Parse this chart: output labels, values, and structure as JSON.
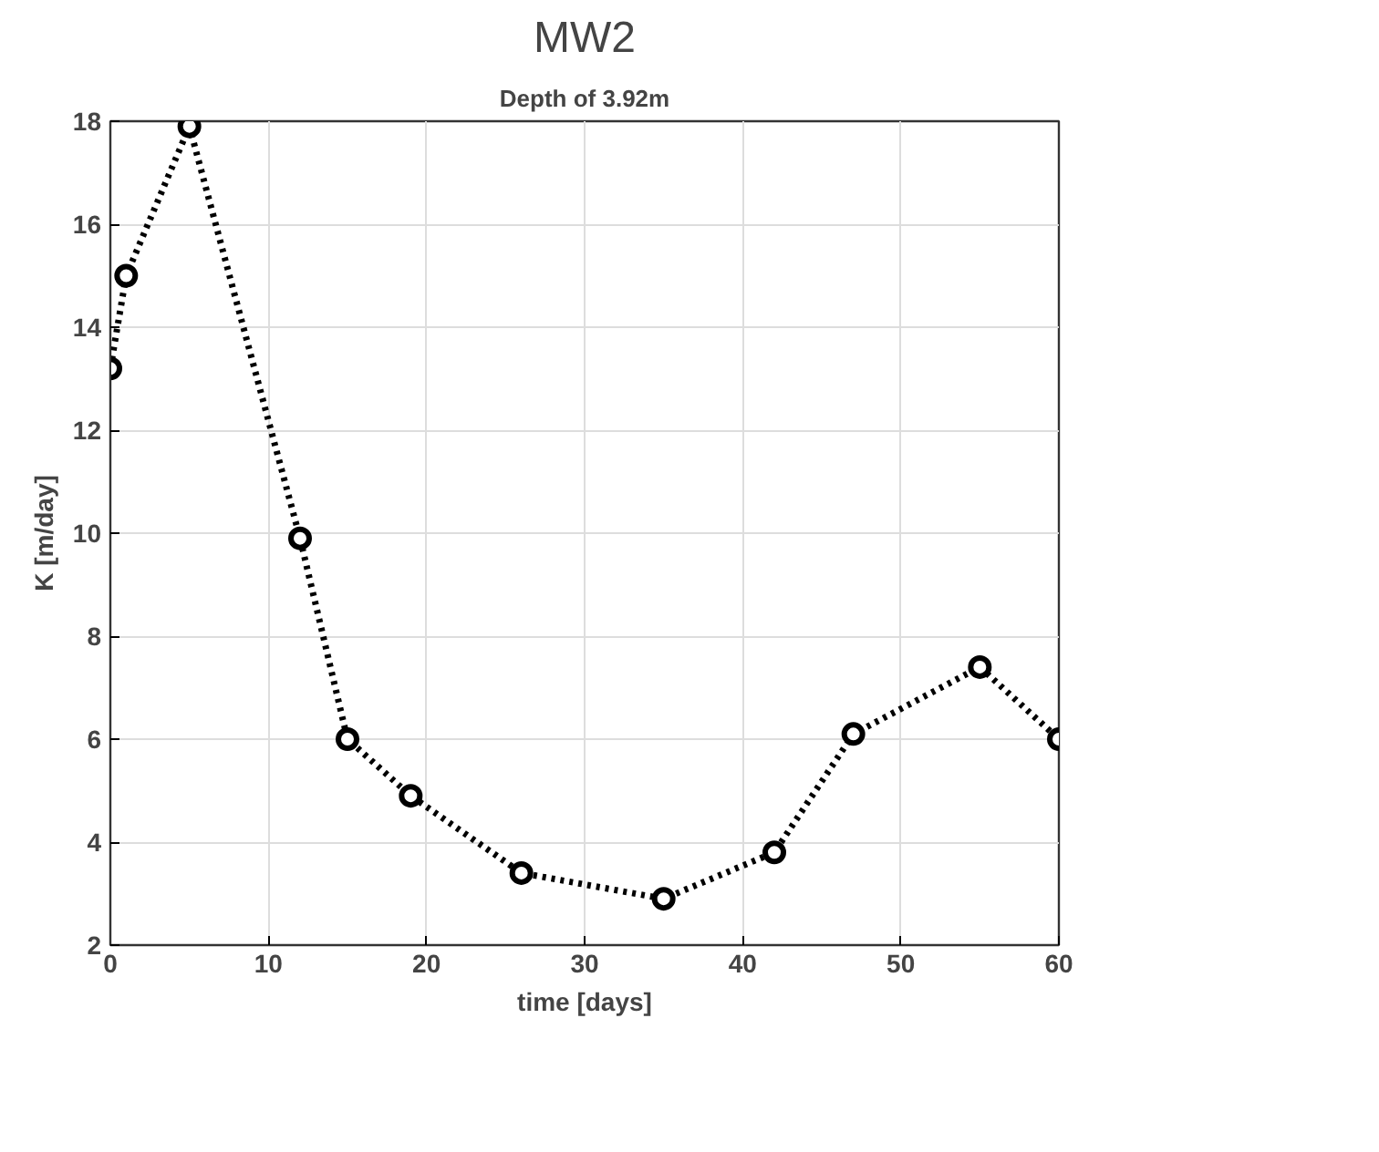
{
  "chart_data": {
    "type": "line",
    "title": "MW2",
    "subtitle": "Depth of 3.92m",
    "xlabel": "time [days]",
    "ylabel": "K [m/day]",
    "x": [
      0,
      1,
      5,
      12,
      15,
      19,
      26,
      35,
      42,
      47,
      55,
      60
    ],
    "series": [
      {
        "color": "#000000",
        "values": [
          13.2,
          15.0,
          17.9,
          9.9,
          6.0,
          4.9,
          3.4,
          2.9,
          3.8,
          6.1,
          7.4,
          6.0
        ]
      }
    ],
    "xlim": [
      0,
      60
    ],
    "xticks": [
      0,
      10,
      20,
      30,
      40,
      50,
      60
    ],
    "ylim": [
      2,
      18
    ],
    "yticks": [
      2,
      4,
      6,
      8,
      10,
      12,
      14,
      16,
      18
    ],
    "grid": true,
    "marker": "circle",
    "line_style": "dotted"
  }
}
